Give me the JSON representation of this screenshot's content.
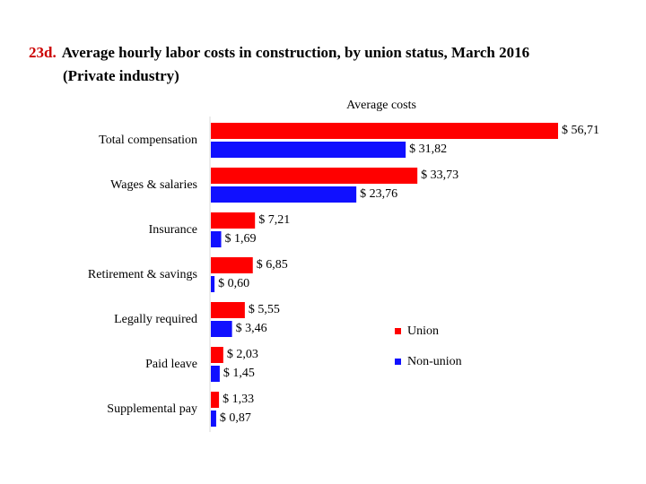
{
  "chart_data": {
    "type": "hbar",
    "title_number": "23d.",
    "title": [
      "Average hourly labor costs in construction, by union status, March 2016",
      "(Private industry)"
    ],
    "x_label": "Average costs",
    "categories": [
      "Total compensation",
      "Wages & salaries",
      "Insurance",
      "Retirement & savings",
      "Legally required",
      "Paid leave",
      "Supplemental pay"
    ],
    "series": [
      {
        "name": "Union",
        "color": "#ff0000",
        "values": [
          56.71,
          33.73,
          7.21,
          6.85,
          5.55,
          2.03,
          1.33
        ],
        "value_labels": [
          "$ 56,71",
          "$ 33,73",
          "$ 7,21",
          "$ 6,85",
          "$ 5,55",
          "$ 2,03",
          "$ 1,33"
        ]
      },
      {
        "name": "Non-union",
        "color": "#1010ff",
        "values": [
          31.82,
          23.76,
          1.69,
          0.6,
          3.46,
          1.45,
          0.87
        ],
        "value_labels": [
          "$ 31,82",
          "$ 23,76",
          "$ 1,69",
          "$ 0,60",
          "$ 3,46",
          "$ 1,45",
          "$ 0,87"
        ]
      }
    ],
    "title_number_color": "#cc0000"
  }
}
